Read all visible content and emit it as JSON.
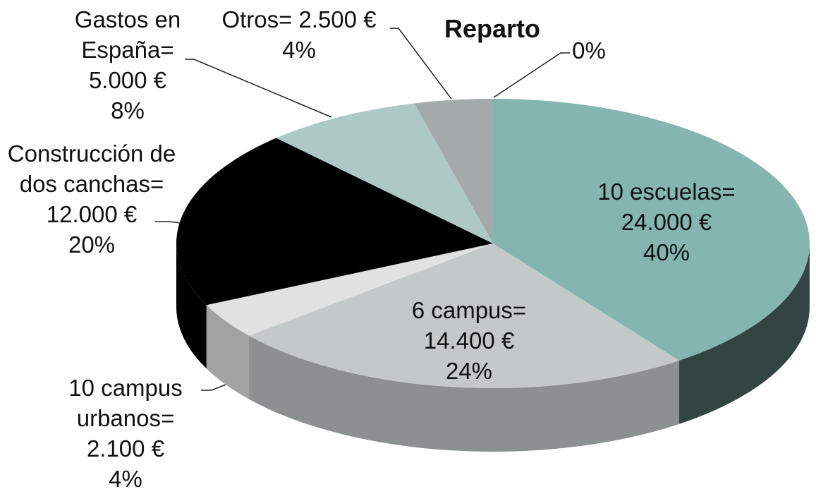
{
  "chart_data": {
    "type": "pie",
    "title": "Reparto",
    "categories": [
      "10 escuelas=",
      "6 campus=",
      "10 campus urbanos=",
      "Construcción de dos canchas=",
      "Gastos en España=",
      "Otros=",
      null
    ],
    "values": [
      40,
      24,
      4,
      20,
      8,
      4,
      0
    ],
    "value_labels": [
      "40%",
      "24%",
      "4%",
      "20%",
      "8%",
      "4%",
      "0%"
    ],
    "amounts": [
      24000,
      14400,
      2100,
      12000,
      5000,
      2500,
      null
    ],
    "amount_labels": [
      "24.000 €",
      "14.400 €",
      "2.100 €",
      "12.000 €",
      "5.000 €",
      "2.500 €",
      null
    ],
    "colors": [
      "#84b5b1",
      "#c3c8c8",
      "#e0e2e2",
      "#000000",
      "#adc9c6",
      "#a4a9a9",
      "#a4a9a9"
    ]
  }
}
